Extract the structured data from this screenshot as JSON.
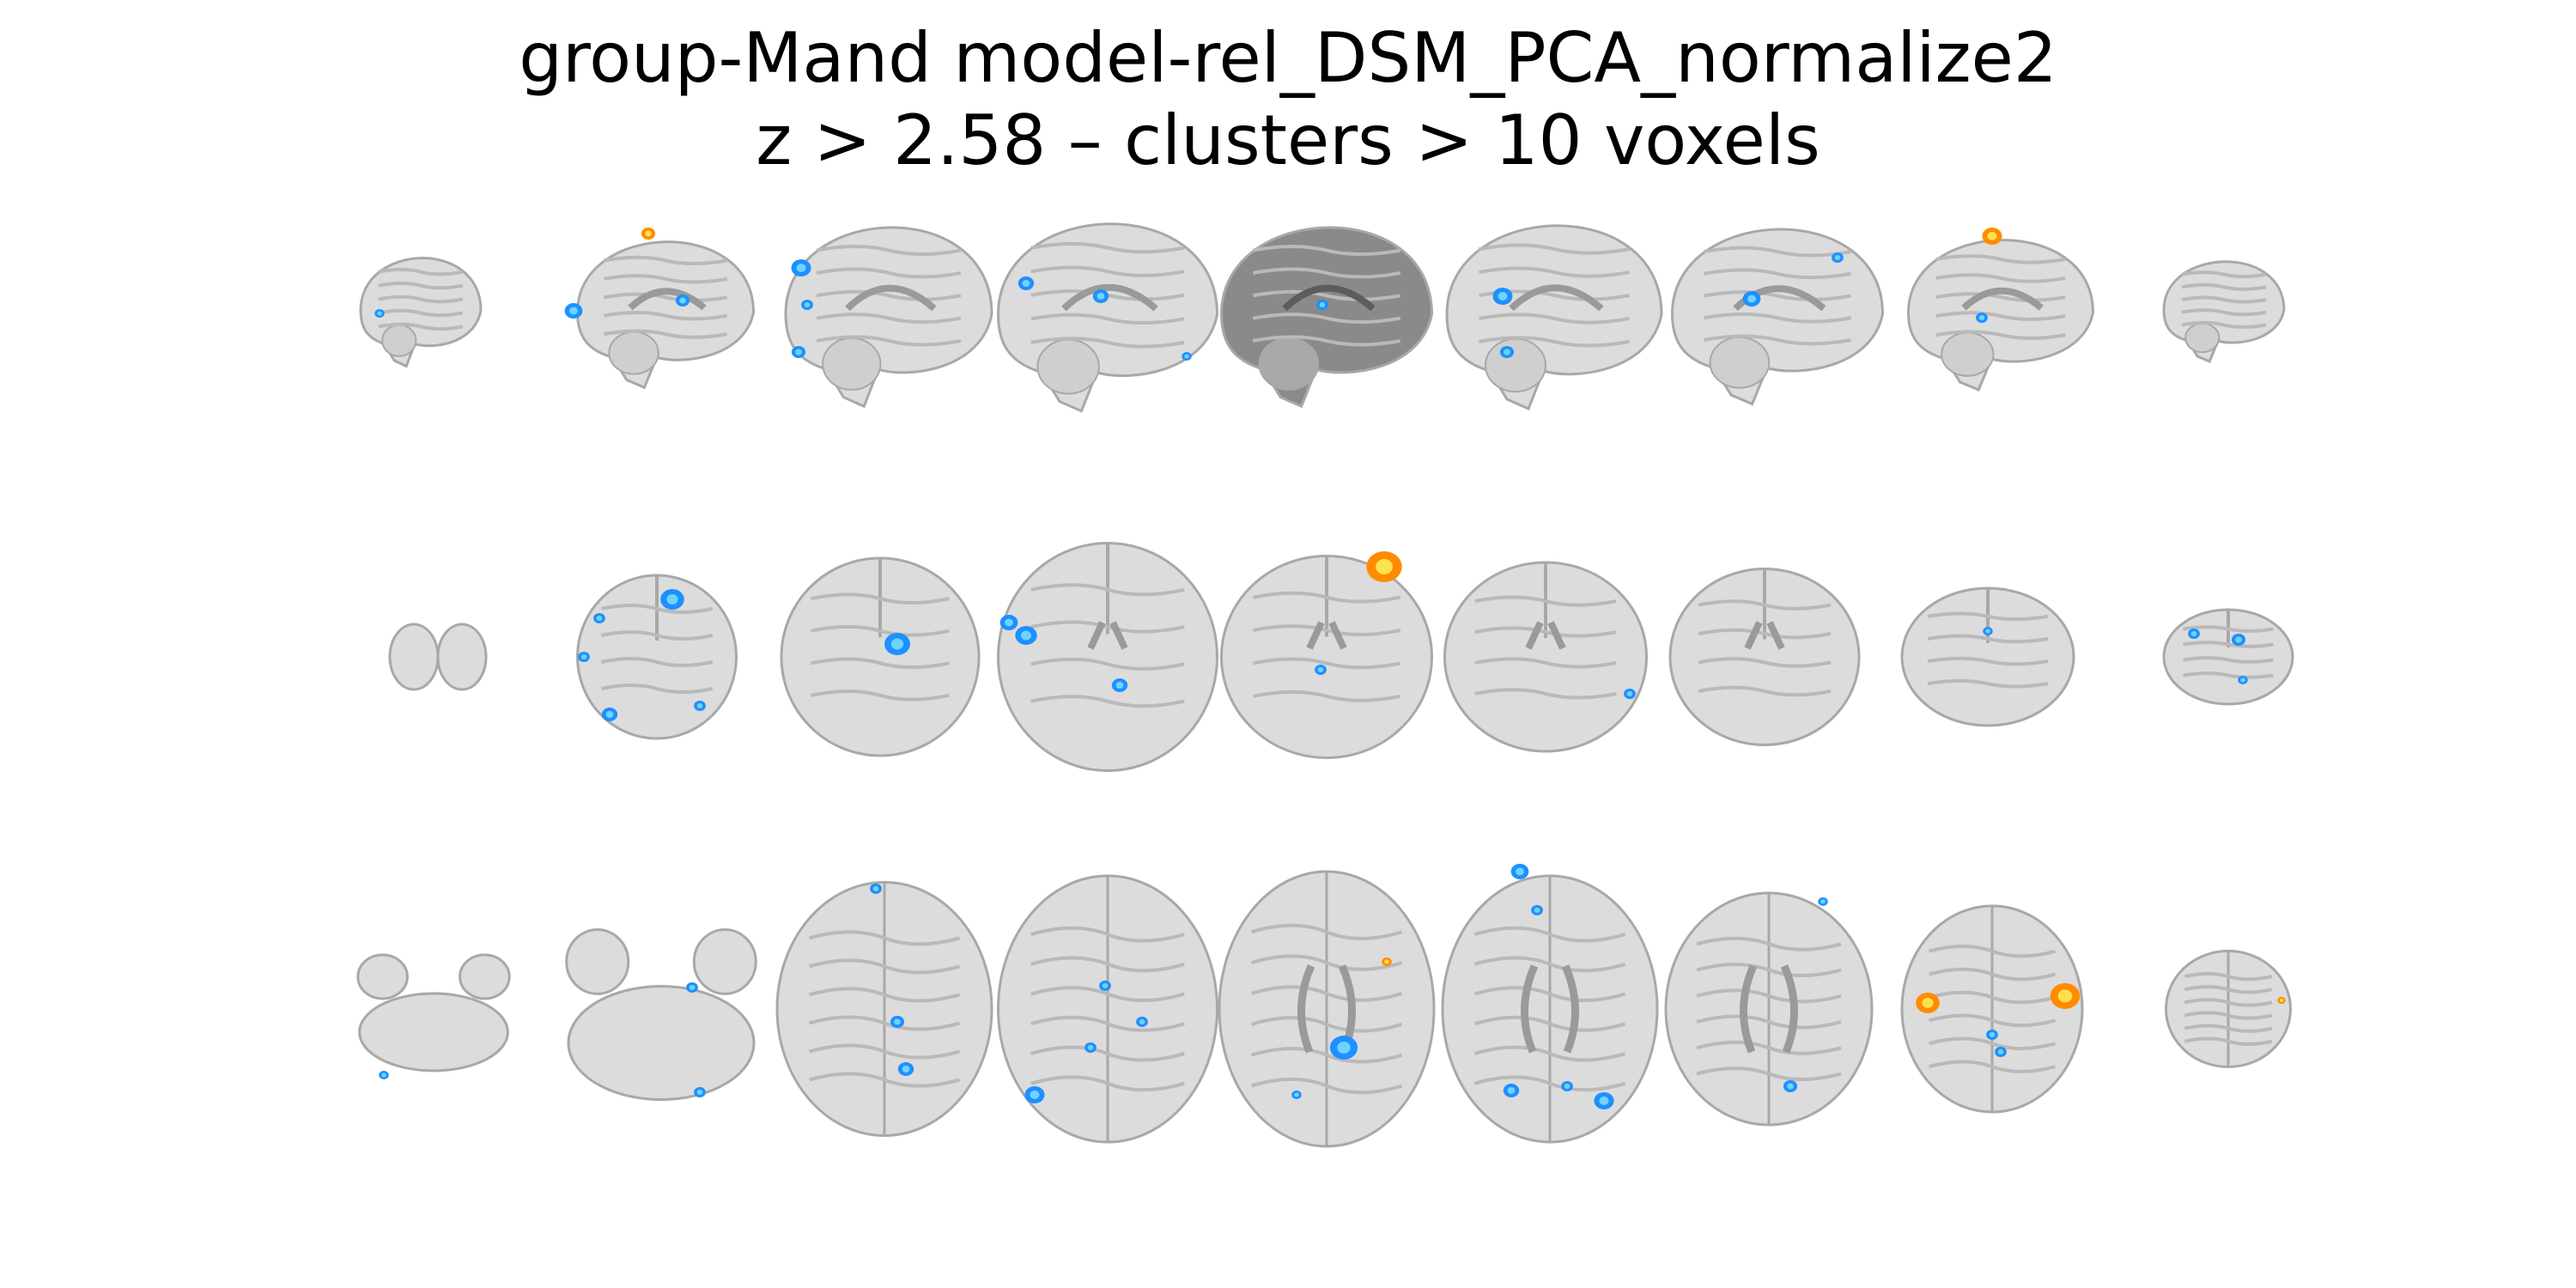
{
  "title": {
    "line1": "group-Mand model-rel_DSM_PCA_normalize2",
    "line2": "z > 2.58 – clusters > 10 voxels"
  },
  "figure": {
    "views": [
      "sagittal",
      "coronal",
      "axial"
    ],
    "slices_per_view": 9,
    "colors": {
      "background": "#ffffff",
      "brain_fill": "#dcdcdc",
      "brain_edge": "#a8a8a8",
      "gyri": "#b9b9b9",
      "dark_slice_fill": "#8a8a8a",
      "positive_hot": "#ff8c00",
      "positive_peak": "#ffe14d",
      "negative_cool": "#1e90ff",
      "negative_peak": "#6fd3ff"
    }
  }
}
